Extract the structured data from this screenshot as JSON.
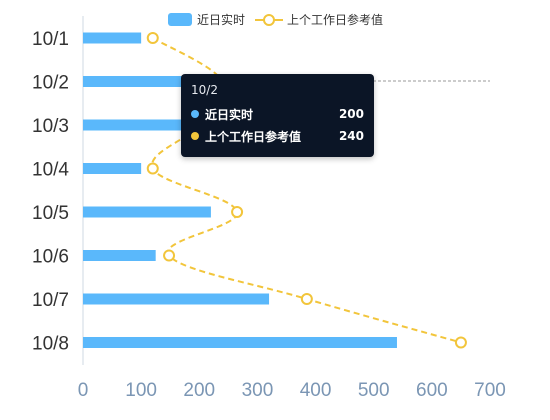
{
  "chart_data": {
    "type": "bar",
    "orientation": "horizontal",
    "categories": [
      "10/1",
      "10/2",
      "10/3",
      "10/4",
      "10/5",
      "10/6",
      "10/7",
      "10/8"
    ],
    "series": [
      {
        "name": "近日实时",
        "type": "bar",
        "color": "#5ab8fb",
        "values": [
          100,
          200,
          200,
          100,
          220,
          125,
          320,
          540
        ]
      },
      {
        "name": "上个工作日参考值",
        "type": "line",
        "style": "dashed",
        "color": "#f2c53b",
        "values": [
          120,
          240,
          200,
          120,
          265,
          148,
          385,
          650
        ]
      }
    ],
    "xticks": [
      "0",
      "100",
      "200",
      "300",
      "400",
      "500",
      "600",
      "700"
    ],
    "xlim": [
      0,
      700
    ],
    "legend": "top-center",
    "grid": false
  },
  "tooltip": {
    "title": "10/2",
    "rows": [
      {
        "name": "近日实时",
        "value": "200",
        "color": "#5ab8fb"
      },
      {
        "name": "上个工作日参考值",
        "value": "240",
        "color": "#f2c53b"
      }
    ]
  }
}
